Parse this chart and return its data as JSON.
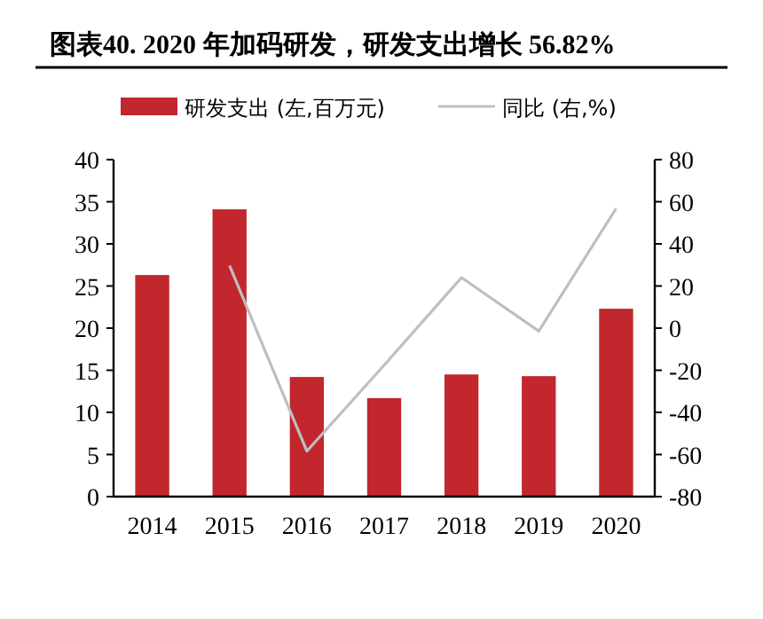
{
  "chart_data": {
    "type": "bar",
    "title": "图表40. 2020 年加码研发，研发支出增长 56.82%",
    "categories": [
      "2014",
      "2015",
      "2016",
      "2017",
      "2018",
      "2019",
      "2020"
    ],
    "series": [
      {
        "name": "研发支出 (左,百万元)",
        "color": "#c1272d",
        "values": [
          26.3,
          34.1,
          14.2,
          11.7,
          14.5,
          14.3,
          22.3
        ]
      },
      {
        "name": "同比 (右,%)",
        "type": "line",
        "axis": "y2",
        "color": "#bfbfbf",
        "values": [
          null,
          29.7,
          -58.4,
          -17.6,
          24.0,
          -1.4,
          56.82
        ]
      }
    ],
    "ylim": [
      0,
      40
    ],
    "yticks": [
      0,
      5,
      10,
      15,
      20,
      25,
      30,
      35,
      40
    ],
    "y2lim": [
      -80,
      80
    ],
    "y2ticks": [
      -80,
      -60,
      -40,
      -20,
      0,
      20,
      40,
      60,
      80
    ],
    "legend": "top",
    "grid": false,
    "marker": "none"
  }
}
